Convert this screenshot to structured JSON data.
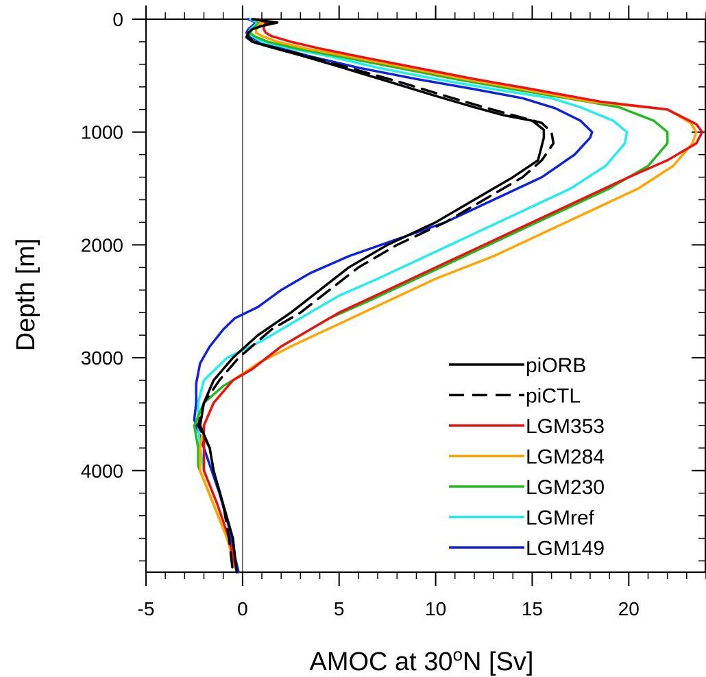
{
  "chart_data": {
    "type": "line",
    "title": "",
    "xlabel_parts": {
      "pre": "AMOC at 30",
      "sup": "o",
      "post": "N [Sv]"
    },
    "ylabel": "Depth [m]",
    "xlim": [
      -5,
      24
    ],
    "ylim": [
      0,
      4900
    ],
    "y_inverted": true,
    "x_ticks": [
      -5,
      0,
      5,
      10,
      15,
      20
    ],
    "x_tick_labels": [
      "-5",
      "0",
      "5",
      "10",
      "15",
      "20"
    ],
    "y_ticks": [
      0,
      1000,
      2000,
      3000,
      4000
    ],
    "y_tick_labels": [
      "0",
      "1000",
      "2000",
      "3000",
      "4000"
    ],
    "zero_line": 0,
    "grid": false,
    "legend": {
      "placement": "bottom-right"
    },
    "series": [
      {
        "name": "piORB",
        "color": "#000000",
        "dash": "solid",
        "points": [
          [
            0.5,
            0
          ],
          [
            1.8,
            30
          ],
          [
            1.0,
            60
          ],
          [
            0.5,
            90
          ],
          [
            0.3,
            120
          ],
          [
            0.2,
            160
          ],
          [
            0.5,
            200
          ],
          [
            1.5,
            250
          ],
          [
            3.0,
            320
          ],
          [
            5.0,
            420
          ],
          [
            7.5,
            550
          ],
          [
            10.0,
            680
          ],
          [
            12.0,
            780
          ],
          [
            13.5,
            850
          ],
          [
            15.0,
            900
          ],
          [
            15.6,
            980
          ],
          [
            15.6,
            1050
          ],
          [
            15.3,
            1250
          ],
          [
            14.0,
            1400
          ],
          [
            12.5,
            1550
          ],
          [
            10.0,
            1800
          ],
          [
            7.5,
            2000
          ],
          [
            5.5,
            2200
          ],
          [
            4.0,
            2400
          ],
          [
            2.5,
            2600
          ],
          [
            0.8,
            2800
          ],
          [
            -0.5,
            3000
          ],
          [
            -1.5,
            3200
          ],
          [
            -2.0,
            3400
          ],
          [
            -2.2,
            3600
          ],
          [
            -1.7,
            3800
          ],
          [
            -1.5,
            4000
          ],
          [
            -1.0,
            4300
          ],
          [
            -0.5,
            4600
          ],
          [
            -0.3,
            4900
          ]
        ]
      },
      {
        "name": "piCTL",
        "color": "#000000",
        "dash": "dashed",
        "points": [
          [
            0.6,
            0
          ],
          [
            1.6,
            30
          ],
          [
            1.0,
            60
          ],
          [
            0.5,
            90
          ],
          [
            0.3,
            120
          ],
          [
            0.3,
            160
          ],
          [
            0.6,
            200
          ],
          [
            1.6,
            250
          ],
          [
            3.2,
            320
          ],
          [
            5.3,
            420
          ],
          [
            8.0,
            550
          ],
          [
            10.5,
            680
          ],
          [
            12.5,
            780
          ],
          [
            14.0,
            850
          ],
          [
            15.5,
            920
          ],
          [
            16.0,
            1000
          ],
          [
            16.1,
            1100
          ],
          [
            15.5,
            1250
          ],
          [
            14.5,
            1400
          ],
          [
            13.0,
            1550
          ],
          [
            10.5,
            1800
          ],
          [
            8.0,
            2000
          ],
          [
            6.0,
            2200
          ],
          [
            4.5,
            2400
          ],
          [
            3.0,
            2600
          ],
          [
            1.5,
            2750
          ],
          [
            -0.2,
            3000
          ],
          [
            -1.2,
            3200
          ],
          [
            -2.0,
            3400
          ],
          [
            -2.3,
            3600
          ],
          [
            -1.7,
            3800
          ],
          [
            -1.5,
            4000
          ],
          [
            -1.0,
            4300
          ],
          [
            -0.7,
            4600
          ],
          [
            -0.5,
            4900
          ]
        ]
      },
      {
        "name": "LGM353",
        "color": "#ee1111",
        "dash": "solid",
        "points": [
          [
            0.8,
            0
          ],
          [
            1.2,
            30
          ],
          [
            1.1,
            60
          ],
          [
            1.1,
            90
          ],
          [
            1.2,
            120
          ],
          [
            1.5,
            150
          ],
          [
            2.5,
            200
          ],
          [
            4.0,
            260
          ],
          [
            6.0,
            330
          ],
          [
            9.0,
            430
          ],
          [
            12.0,
            530
          ],
          [
            15.0,
            620
          ],
          [
            18.5,
            730
          ],
          [
            22.0,
            800
          ],
          [
            23.5,
            930
          ],
          [
            23.8,
            1000
          ],
          [
            23.5,
            1100
          ],
          [
            22.0,
            1250
          ],
          [
            20.0,
            1400
          ],
          [
            17.5,
            1600
          ],
          [
            15.0,
            1800
          ],
          [
            12.5,
            2000
          ],
          [
            10.0,
            2200
          ],
          [
            7.5,
            2400
          ],
          [
            5.0,
            2600
          ],
          [
            2.0,
            2900
          ],
          [
            0.5,
            3100
          ],
          [
            -0.5,
            3200
          ],
          [
            -1.5,
            3400
          ],
          [
            -2.0,
            3600
          ],
          [
            -2.0,
            3800
          ],
          [
            -2.0,
            4000
          ],
          [
            -1.3,
            4300
          ],
          [
            -0.7,
            4600
          ],
          [
            -0.3,
            4900
          ]
        ]
      },
      {
        "name": "LGM284",
        "color": "#ffa500",
        "dash": "solid",
        "points": [
          [
            0.7,
            0
          ],
          [
            1.0,
            30
          ],
          [
            0.8,
            60
          ],
          [
            0.7,
            90
          ],
          [
            0.7,
            120
          ],
          [
            1.0,
            150
          ],
          [
            1.8,
            200
          ],
          [
            3.3,
            260
          ],
          [
            5.5,
            330
          ],
          [
            8.5,
            430
          ],
          [
            11.5,
            530
          ],
          [
            14.5,
            620
          ],
          [
            18.0,
            730
          ],
          [
            22.0,
            800
          ],
          [
            23.2,
            920
          ],
          [
            23.5,
            1000
          ],
          [
            23.3,
            1100
          ],
          [
            22.3,
            1300
          ],
          [
            20.5,
            1500
          ],
          [
            18.0,
            1700
          ],
          [
            15.5,
            1900
          ],
          [
            13.0,
            2100
          ],
          [
            10.0,
            2300
          ],
          [
            7.5,
            2500
          ],
          [
            5.0,
            2700
          ],
          [
            2.5,
            2900
          ],
          [
            0.8,
            3050
          ],
          [
            -0.5,
            3200
          ],
          [
            -1.5,
            3400
          ],
          [
            -2.0,
            3600
          ],
          [
            -2.2,
            3800
          ],
          [
            -2.2,
            4000
          ],
          [
            -1.5,
            4300
          ],
          [
            -0.8,
            4600
          ],
          [
            -0.3,
            4900
          ]
        ]
      },
      {
        "name": "LGM230",
        "color": "#22bb22",
        "dash": "solid",
        "points": [
          [
            0.6,
            0
          ],
          [
            0.9,
            30
          ],
          [
            0.7,
            60
          ],
          [
            0.5,
            90
          ],
          [
            0.4,
            120
          ],
          [
            0.6,
            150
          ],
          [
            1.3,
            200
          ],
          [
            2.8,
            260
          ],
          [
            5.0,
            330
          ],
          [
            8.0,
            430
          ],
          [
            11.0,
            530
          ],
          [
            14.0,
            620
          ],
          [
            17.5,
            720
          ],
          [
            19.5,
            780
          ],
          [
            21.3,
            900
          ],
          [
            22.0,
            1000
          ],
          [
            22.0,
            1100
          ],
          [
            21.0,
            1300
          ],
          [
            19.0,
            1500
          ],
          [
            16.5,
            1700
          ],
          [
            14.0,
            1900
          ],
          [
            11.5,
            2100
          ],
          [
            9.0,
            2300
          ],
          [
            6.5,
            2500
          ],
          [
            4.5,
            2650
          ],
          [
            2.0,
            2900
          ],
          [
            0.5,
            3100
          ],
          [
            -1.0,
            3250
          ],
          [
            -2.0,
            3400
          ],
          [
            -2.5,
            3600
          ],
          [
            -2.3,
            3800
          ],
          [
            -2.3,
            3960
          ],
          [
            -1.5,
            4300
          ],
          [
            -0.8,
            4600
          ],
          [
            -0.3,
            4900
          ]
        ]
      },
      {
        "name": "LGMref",
        "color": "#22eeee",
        "dash": "solid",
        "points": [
          [
            0.4,
            0
          ],
          [
            0.8,
            30
          ],
          [
            0.6,
            60
          ],
          [
            0.4,
            90
          ],
          [
            0.3,
            120
          ],
          [
            0.5,
            150
          ],
          [
            1.0,
            200
          ],
          [
            2.5,
            260
          ],
          [
            4.5,
            330
          ],
          [
            7.0,
            430
          ],
          [
            10.0,
            530
          ],
          [
            13.0,
            620
          ],
          [
            16.0,
            700
          ],
          [
            17.5,
            780
          ],
          [
            19.2,
            900
          ],
          [
            19.9,
            1000
          ],
          [
            19.8,
            1100
          ],
          [
            18.8,
            1300
          ],
          [
            17.0,
            1500
          ],
          [
            14.5,
            1700
          ],
          [
            12.0,
            1900
          ],
          [
            9.5,
            2100
          ],
          [
            7.0,
            2300
          ],
          [
            5.0,
            2450
          ],
          [
            3.0,
            2650
          ],
          [
            1.0,
            2850
          ],
          [
            -0.8,
            3000
          ],
          [
            -2.0,
            3200
          ],
          [
            -2.3,
            3400
          ],
          [
            -2.3,
            3600
          ],
          [
            -2.2,
            3800
          ],
          [
            -2.0,
            4000
          ],
          [
            -1.3,
            4300
          ],
          [
            -0.7,
            4600
          ],
          [
            -0.3,
            4900
          ]
        ]
      },
      {
        "name": "LGM149",
        "color": "#1122dd",
        "dash": "solid",
        "points": [
          [
            0.3,
            0
          ],
          [
            0.7,
            30
          ],
          [
            0.5,
            60
          ],
          [
            0.3,
            90
          ],
          [
            0.2,
            120
          ],
          [
            0.4,
            150
          ],
          [
            0.9,
            200
          ],
          [
            2.0,
            260
          ],
          [
            3.5,
            330
          ],
          [
            6.0,
            430
          ],
          [
            9.0,
            530
          ],
          [
            12.0,
            620
          ],
          [
            14.5,
            700
          ],
          [
            16.2,
            790
          ],
          [
            17.5,
            900
          ],
          [
            18.1,
            1000
          ],
          [
            18.0,
            1050
          ],
          [
            17.2,
            1200
          ],
          [
            15.5,
            1400
          ],
          [
            13.0,
            1600
          ],
          [
            10.5,
            1800
          ],
          [
            8.0,
            1950
          ],
          [
            5.5,
            2100
          ],
          [
            3.5,
            2250
          ],
          [
            2.0,
            2400
          ],
          [
            0.8,
            2550
          ],
          [
            -0.4,
            2650
          ],
          [
            -1.0,
            2750
          ],
          [
            -1.7,
            2900
          ],
          [
            -2.2,
            3050
          ],
          [
            -2.4,
            3230
          ],
          [
            -2.4,
            3400
          ],
          [
            -2.5,
            3550
          ],
          [
            -2.2,
            3700
          ],
          [
            -1.8,
            3900
          ],
          [
            -1.2,
            4200
          ],
          [
            -0.7,
            4500
          ],
          [
            -0.5,
            4700
          ],
          [
            -0.2,
            4900
          ]
        ]
      }
    ]
  }
}
